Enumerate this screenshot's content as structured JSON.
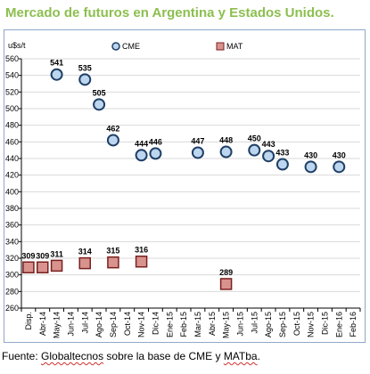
{
  "title": "Mercado de futuros en Argentina y Estados Unidos.",
  "source": {
    "prefix": "Fuente: ",
    "org": "Globaltecnos",
    "middle": " sobre la base de CME y ",
    "matba": "MATba",
    "suffix": "."
  },
  "colors": {
    "title": "#8cbf4f",
    "cme_fill": "#bcd6ef",
    "cme_stroke": "#1f3f66",
    "mat_fill": "#d9938e",
    "mat_stroke": "#7a1f1f",
    "grid": "#d9d9d9"
  },
  "chart_data": {
    "type": "scatter",
    "ylabel": "u$s/t",
    "ylim": [
      260,
      560
    ],
    "yticks": [
      260,
      280,
      300,
      320,
      340,
      360,
      380,
      400,
      420,
      440,
      460,
      480,
      500,
      520,
      540,
      560
    ],
    "grid": true,
    "legend_position": "top",
    "categories": [
      "Disp.",
      "Abr-14",
      "May-14",
      "Jun-14",
      "Jul-14",
      "Ago-14",
      "Sep-14",
      "Oct-14",
      "Nov-14",
      "Dic-14",
      "Ene-15",
      "Feb-15",
      "Mar-15",
      "Abr-15",
      "May-15",
      "Jun-15",
      "Jul-15",
      "Ago-15",
      "Sep-15",
      "Oct-15",
      "Nov-15",
      "Dic-15",
      "Ene-16",
      "Feb-16"
    ],
    "series": [
      {
        "name": "CME",
        "marker": "circle",
        "points": [
          {
            "x": "May-14",
            "y": 541
          },
          {
            "x": "Jul-14",
            "y": 535
          },
          {
            "x": "Ago-14",
            "y": 505
          },
          {
            "x": "Sep-14",
            "y": 462
          },
          {
            "x": "Nov-14",
            "y": 444
          },
          {
            "x": "Dic-14",
            "y": 446
          },
          {
            "x": "Mar-15",
            "y": 447
          },
          {
            "x": "May-15",
            "y": 448
          },
          {
            "x": "Jul-15",
            "y": 450
          },
          {
            "x": "Ago-15",
            "y": 443
          },
          {
            "x": "Sep-15",
            "y": 433
          },
          {
            "x": "Nov-15",
            "y": 430
          },
          {
            "x": "Ene-16",
            "y": 430
          }
        ]
      },
      {
        "name": "MAT",
        "marker": "square",
        "points": [
          {
            "x": "Disp.",
            "y": 309
          },
          {
            "x": "Abr-14",
            "y": 309
          },
          {
            "x": "May-14",
            "y": 311
          },
          {
            "x": "Jul-14",
            "y": 314
          },
          {
            "x": "Sep-14",
            "y": 315
          },
          {
            "x": "Nov-14",
            "y": 316
          },
          {
            "x": "May-15",
            "y": 289
          }
        ]
      }
    ]
  }
}
